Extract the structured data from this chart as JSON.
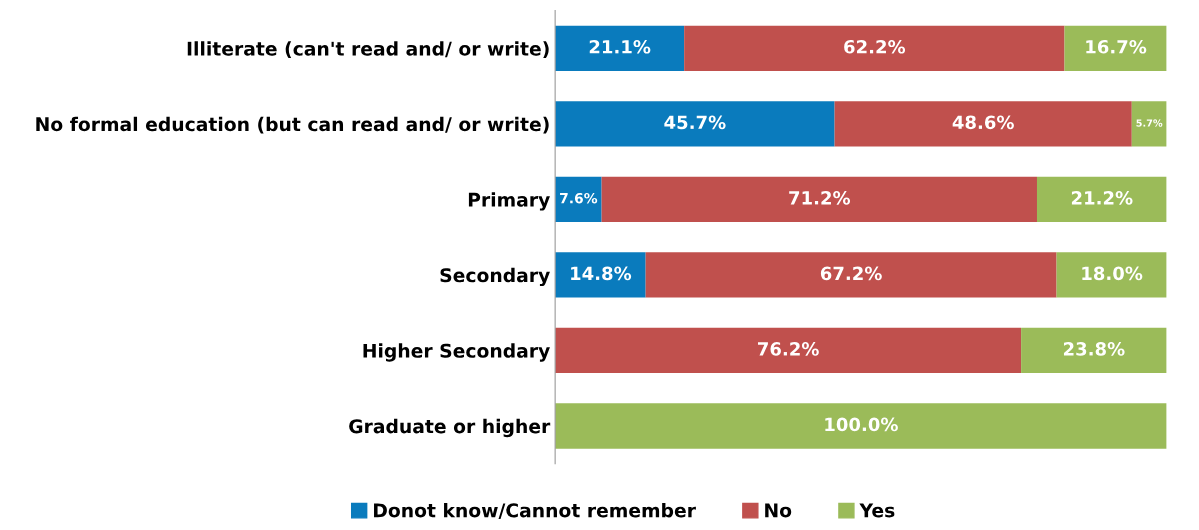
{
  "chart_data": {
    "type": "bar",
    "orientation": "horizontal",
    "stacked": true,
    "categories": [
      "Illiterate (can't read and/ or write)",
      "No formal education (but can read and/ or write)",
      "Primary",
      "Secondary",
      "Higher Secondary",
      "Graduate or higher"
    ],
    "series": [
      {
        "name": "Donot know/Cannot remember",
        "color": "#0a7bbd",
        "values": [
          21.1,
          45.7,
          7.6,
          14.8,
          null,
          null
        ],
        "value_labels": [
          "21.1%",
          "45.7%",
          "7.6%",
          "14.8%",
          null,
          null
        ]
      },
      {
        "name": "No",
        "color": "#c0504d",
        "values": [
          62.2,
          48.6,
          71.2,
          67.2,
          76.2,
          null
        ],
        "value_labels": [
          "62.2%",
          "48.6%",
          "71.2%",
          "67.2%",
          "76.2%",
          null
        ]
      },
      {
        "name": "Yes",
        "color": "#9bbb59",
        "values": [
          16.7,
          5.7,
          21.2,
          18.0,
          23.8,
          100.0
        ],
        "value_labels": [
          "16.7%",
          "5.7%",
          "21.2%",
          "18.0%",
          "23.8%",
          "100.0%"
        ]
      }
    ],
    "xlim": [
      0,
      100
    ],
    "tick_labels": "y",
    "legend": "bottom"
  }
}
